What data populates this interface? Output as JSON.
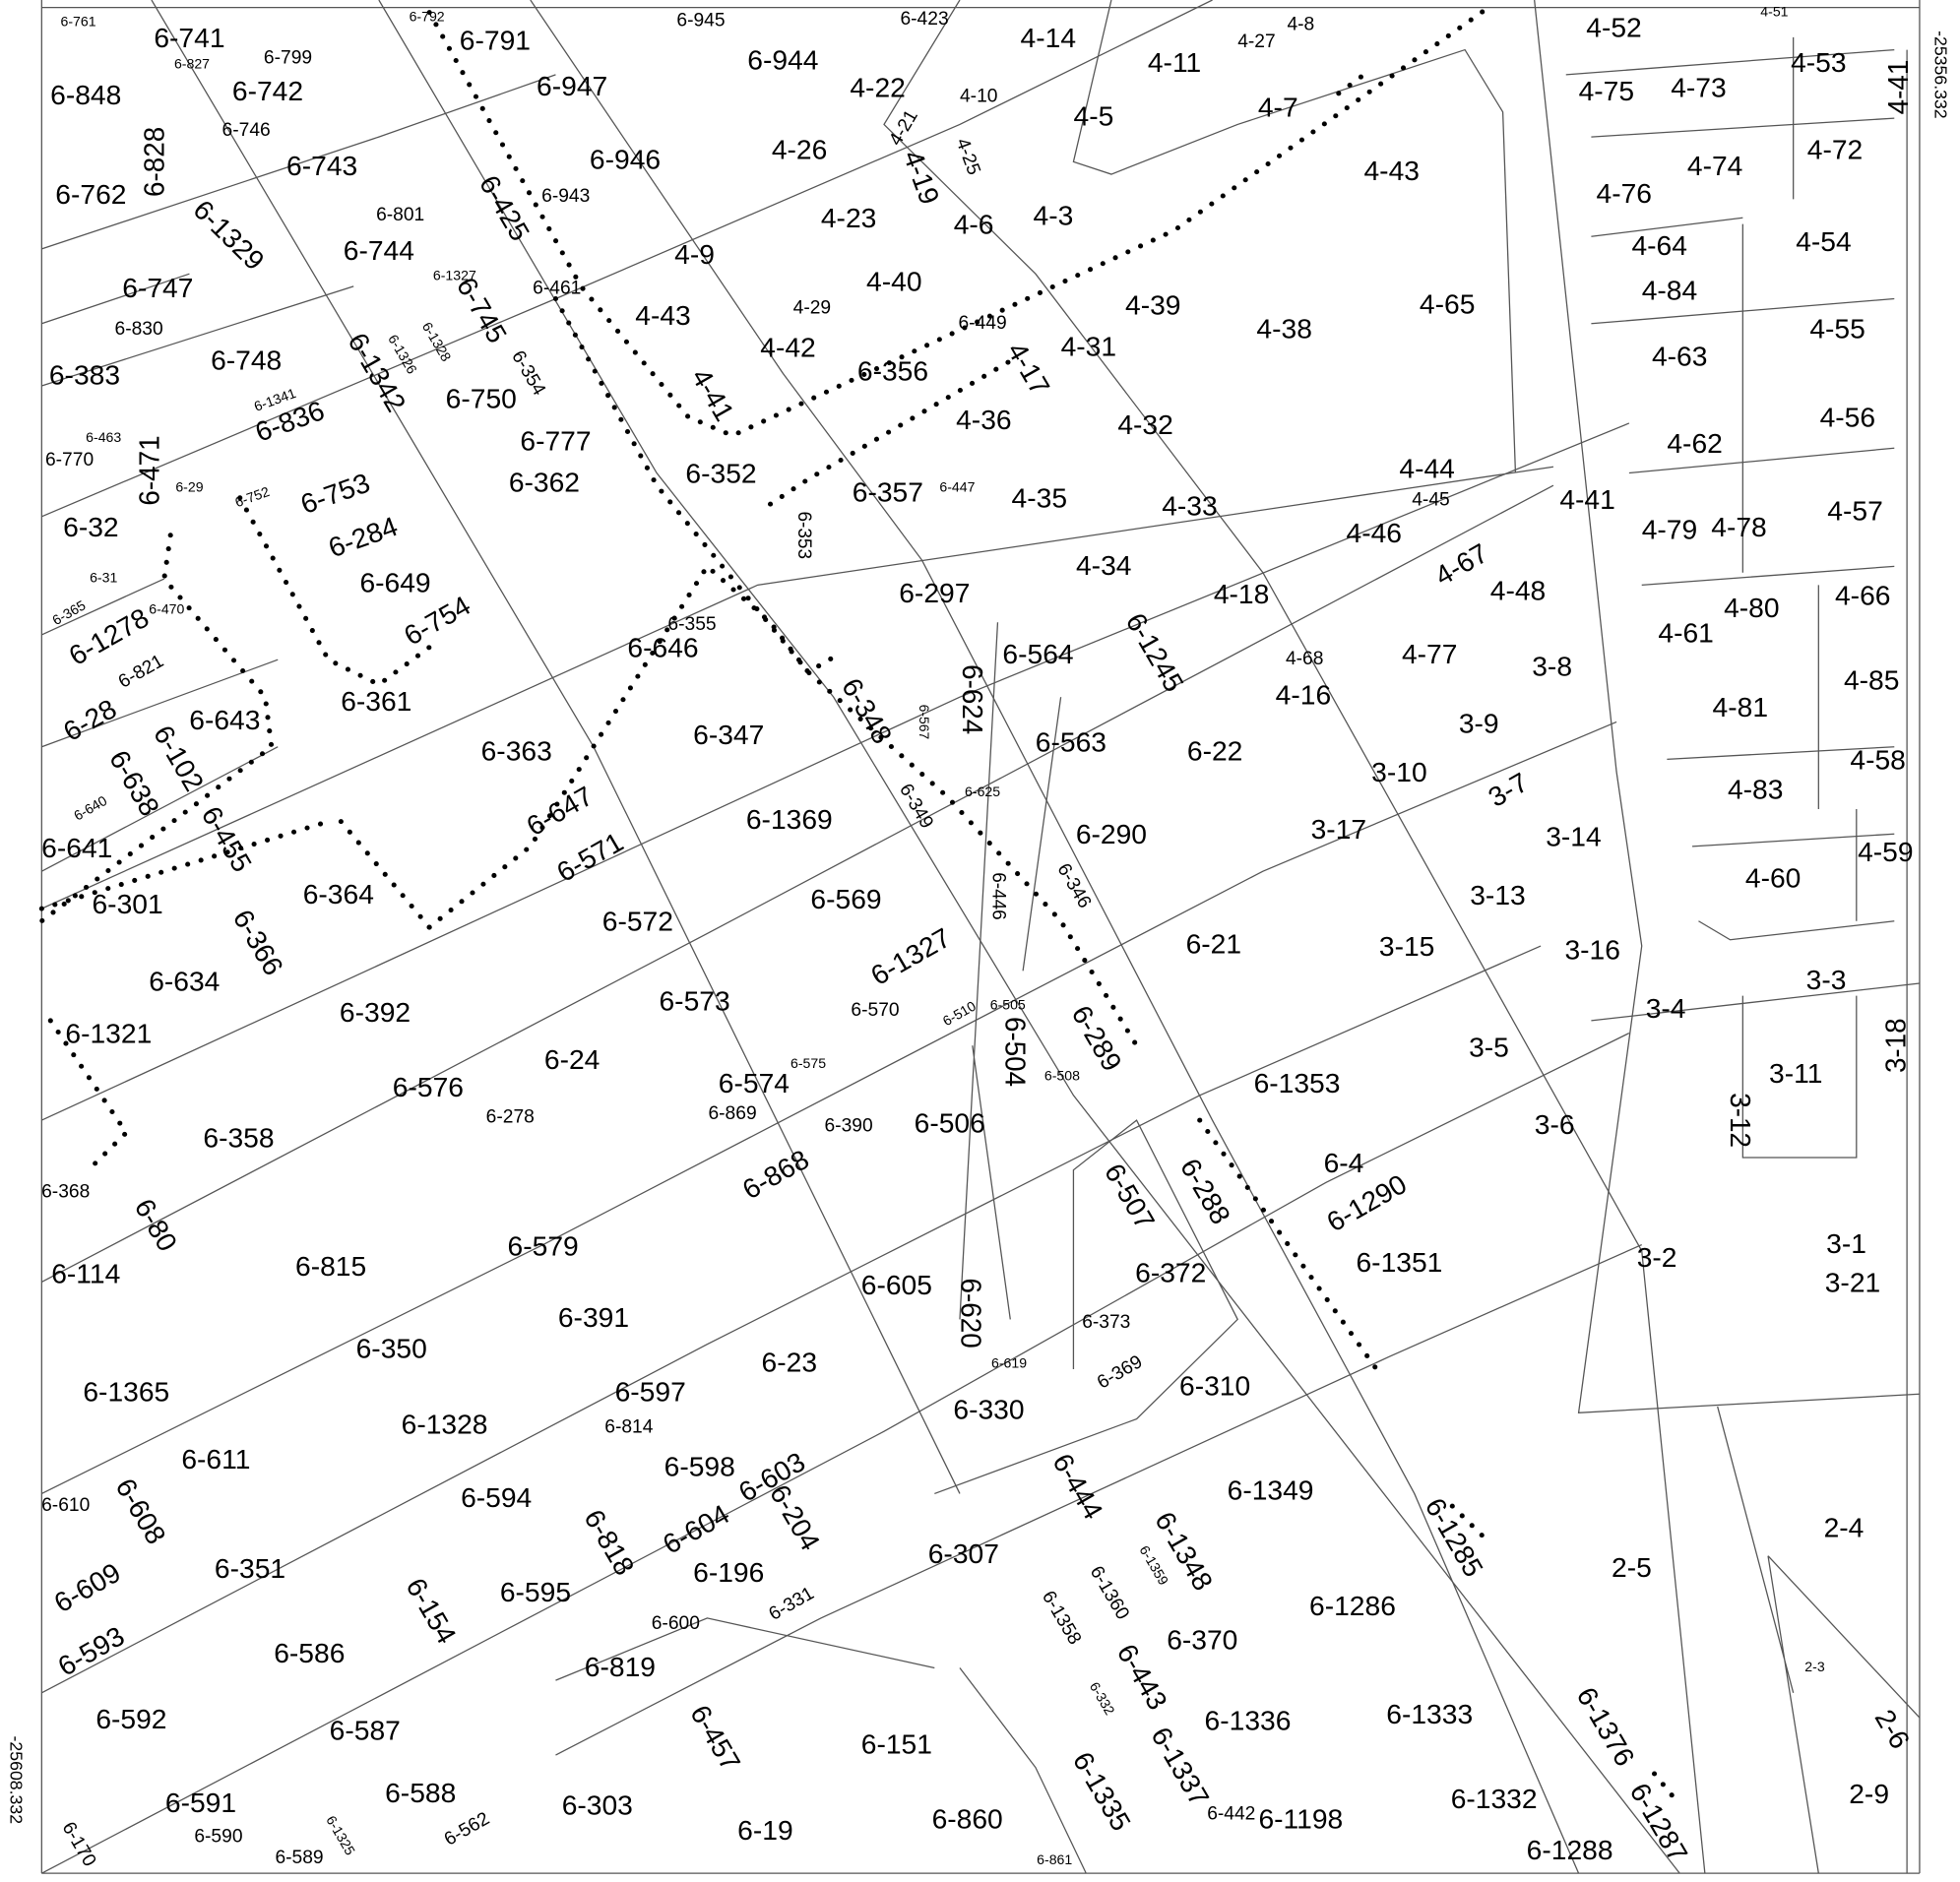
{
  "coordinates": [
    "-25356.332",
    "-25608.332"
  ],
  "labels": [
    "6-761",
    "6-741",
    "6-827",
    "6-799",
    "6-848",
    "6-742",
    "6-746",
    "6-828",
    "6-762",
    "6-743",
    "6-1329",
    "6-747",
    "6-801",
    "6-744",
    "6-792",
    "6-791",
    "6-945",
    "6-947",
    "6-944",
    "6-423",
    "4-14",
    "4-11",
    "4-27",
    "4-8",
    "4-52",
    "4-51",
    "4-53",
    "4-41",
    "4-75",
    "4-73",
    "4-22",
    "4-10",
    "4-5",
    "4-7",
    "4-72",
    "4-74",
    "4-76",
    "6-946",
    "6-425",
    "6-943",
    "4-26",
    "4-21",
    "4-19",
    "4-25",
    "4-43",
    "4-23",
    "4-6",
    "4-3",
    "4-54",
    "4-64",
    "4-84",
    "4-9",
    "6-1327",
    "6-745",
    "6-461",
    "4-40",
    "6-449",
    "4-29",
    "4-43",
    "4-39",
    "4-38",
    "4-65",
    "4-55",
    "4-63",
    "6-383",
    "6-830",
    "6-748",
    "6-1326",
    "6-1328",
    "6-1342",
    "6-354",
    "4-42",
    "6-356",
    "4-31",
    "4-17",
    "6-750",
    "4-41",
    "6-1341",
    "6-463",
    "6-770",
    "6-471",
    "6-836",
    "6-777",
    "4-36",
    "4-32",
    "4-62",
    "4-56",
    "6-29",
    "6-752",
    "6-753",
    "6-362",
    "6-352",
    "6-357",
    "6-447",
    "4-35",
    "4-33",
    "4-44",
    "4-45",
    "4-41",
    "4-79",
    "4-78",
    "4-57",
    "6-32",
    "6-353",
    "6-284",
    "4-46",
    "4-67",
    "6-31",
    "6-649",
    "6-297",
    "4-34",
    "4-18",
    "4-48",
    "4-66",
    "4-80",
    "6-365",
    "6-470",
    "6-1278",
    "6-754",
    "6-355",
    "4-61",
    "6-646",
    "6-564",
    "6-1245",
    "4-68",
    "4-77",
    "3-8",
    "6-821",
    "6-361",
    "6-624",
    "4-16",
    "4-85",
    "6-28",
    "6-643",
    "6-348",
    "6-567",
    "6-347",
    "4-81",
    "3-9",
    "6-102",
    "6-363",
    "6-563",
    "6-22",
    "4-58",
    "6-638",
    "3-10",
    "3-7",
    "4-83",
    "6-640",
    "6-349",
    "6-625",
    "6-647",
    "6-1369",
    "6-641",
    "6-455",
    "3-17",
    "3-14",
    "6-290",
    "6-571",
    "4-59",
    "6-301",
    "6-364",
    "6-346",
    "6-446",
    "6-569",
    "3-13",
    "4-60",
    "6-572",
    "6-366",
    "6-1327",
    "6-21",
    "3-15",
    "3-16",
    "6-634",
    "3-3",
    "3-4",
    "6-392",
    "6-573",
    "6-505",
    "6-510",
    "6-570",
    "6-504",
    "6-289",
    "3-5",
    "6-1321",
    "3-18",
    "3-11",
    "6-24",
    "6-1353",
    "6-508",
    "6-575",
    "6-574",
    "6-576",
    "6-278",
    "3-12",
    "6-358",
    "6-869",
    "6-390",
    "6-506",
    "3-6",
    "6-4",
    "6-868",
    "6-507",
    "6-288",
    "6-368",
    "6-80",
    "6-1290",
    "3-1",
    "3-2",
    "6-579",
    "6-1351",
    "6-372",
    "6-815",
    "6-114",
    "3-21",
    "6-605",
    "6-620",
    "6-391",
    "6-373",
    "6-350",
    "6-23",
    "6-619",
    "6-369",
    "6-310",
    "6-1365",
    "6-597",
    "6-814",
    "6-330",
    "6-1328",
    "6-611",
    "6-598",
    "6-603",
    "6-1349",
    "6-594",
    "6-444",
    "6-1348",
    "6-1285",
    "6-610",
    "6-608",
    "6-204",
    "6-818",
    "6-604",
    "6-307",
    "2-4",
    "6-1359",
    "6-196",
    "2-5",
    "6-351",
    "6-609",
    "6-1360",
    "6-331",
    "6-154",
    "6-595",
    "6-1286",
    "6-600",
    "6-593",
    "6-1358",
    "6-370",
    "6-586",
    "6-819",
    "2-3",
    "6-443",
    "6-332",
    "6-1333",
    "6-1336",
    "6-1376",
    "2-6",
    "6-592",
    "6-457",
    "6-587",
    "6-151",
    "6-1337",
    "6-1335",
    "2-9",
    "6-588",
    "6-1332",
    "6-591",
    "6-303",
    "6-442",
    "6-1198",
    "6-1287",
    "6-860",
    "6-590",
    "6-562",
    "6-19",
    "6-1325",
    "6-170",
    "6-589",
    "6-1288",
    "6-861"
  ]
}
